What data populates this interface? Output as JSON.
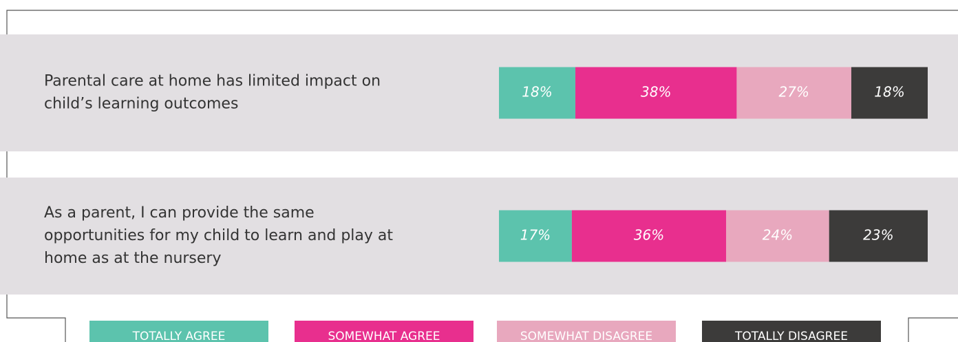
{
  "chart_data": {
    "type": "stacked-barh",
    "categories": [
      [
        "Parental care at home has limited impact on",
        "child’s learning outcomes"
      ],
      [
        "As a parent, I can provide the same",
        "opportunities for my child to learn and play at",
        "home as at the nursery"
      ]
    ],
    "series": [
      {
        "name": "TOTALLY AGREE",
        "color": "#5cc3ad",
        "values": [
          18,
          17
        ],
        "value_labels": [
          "18%",
          "17%"
        ]
      },
      {
        "name": "SOMEWHAT AGREE",
        "color": "#e82f8e",
        "values": [
          38,
          36
        ],
        "value_labels": [
          "38%",
          "36%"
        ]
      },
      {
        "name": "SOMEWHAT DISAGREE",
        "color": "#e8a8be",
        "values": [
          27,
          24
        ],
        "value_labels": [
          "27%",
          "24%"
        ]
      },
      {
        "name": "TOTALLY DISAGREE",
        "color": "#3c3b3a",
        "values": [
          18,
          23
        ],
        "value_labels": [
          "18%",
          "23%"
        ]
      }
    ]
  }
}
